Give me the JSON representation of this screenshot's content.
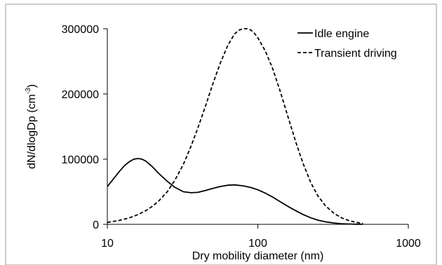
{
  "chart_data": {
    "type": "line",
    "title": "",
    "xlabel": "Dry mobility diameter (nm)",
    "ylabel_main": "dN/dlogDp (cm",
    "ylabel_sup": "-3",
    "ylabel_close": ")",
    "x_scale": "log",
    "xlim": [
      10,
      1000
    ],
    "ylim": [
      0,
      300000
    ],
    "x_ticks": [
      10,
      100,
      1000
    ],
    "x_tick_labels": [
      "10",
      "100",
      "1000"
    ],
    "y_ticks": [
      0,
      100000,
      200000,
      300000
    ],
    "y_tick_labels": [
      "0",
      "100000",
      "200000",
      "300000"
    ],
    "grid": false,
    "legend_position": "top-right",
    "series": [
      {
        "name": "Idle engine",
        "style": "solid",
        "color": "#000000",
        "x": [
          10,
          11,
          12,
          13,
          14,
          15,
          16,
          17,
          18,
          20,
          22,
          25,
          28,
          32,
          36,
          40,
          45,
          50,
          56,
          63,
          70,
          80,
          90,
          100,
          112,
          125,
          140,
          160,
          180,
          200,
          225,
          250,
          280,
          320,
          360,
          400,
          450,
          500
        ],
        "y": [
          58000,
          70000,
          81000,
          90000,
          96000,
          100000,
          101000,
          100000,
          97000,
          88000,
          78000,
          66000,
          57000,
          50000,
          48500,
          49000,
          52000,
          55000,
          58000,
          60000,
          60500,
          59000,
          56500,
          53000,
          48000,
          42000,
          35000,
          27000,
          20500,
          15000,
          10000,
          6500,
          4000,
          2000,
          1000,
          500,
          200,
          100
        ]
      },
      {
        "name": "Transient driving",
        "style": "dashed",
        "color": "#000000",
        "x": [
          10,
          12,
          14,
          16,
          18,
          20,
          22,
          25,
          28,
          32,
          36,
          40,
          45,
          50,
          56,
          63,
          70,
          75,
          80,
          85,
          90,
          95,
          100,
          112,
          125,
          140,
          160,
          180,
          200,
          225,
          250,
          280,
          320,
          360,
          400,
          450,
          500
        ],
        "y": [
          3000,
          6000,
          10000,
          15000,
          21000,
          28000,
          36000,
          50000,
          67000,
          92000,
          120000,
          148000,
          182000,
          214000,
          246000,
          274000,
          292000,
          298000,
          300000,
          300000,
          298000,
          293000,
          286000,
          266000,
          240000,
          206000,
          162000,
          124000,
          93000,
          64000,
          44000,
          29000,
          17000,
          10000,
          6000,
          3000,
          1500
        ]
      }
    ]
  }
}
